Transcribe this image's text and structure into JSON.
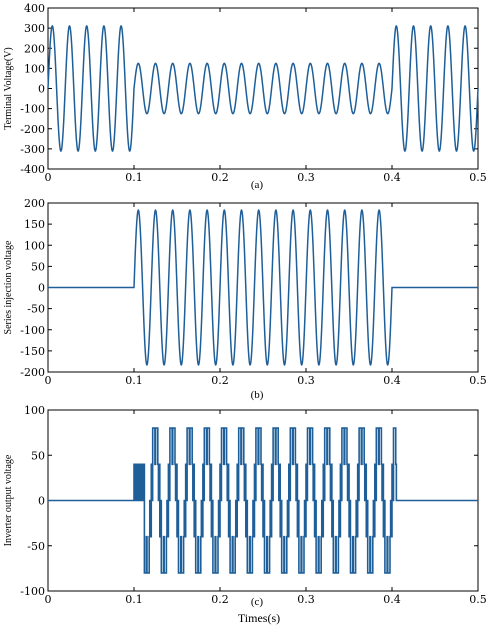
{
  "chart_data": [
    {
      "id": "a",
      "type": "line",
      "caption": "(a)",
      "ylabel": "Terminal Voltage(V)",
      "xlabel": "",
      "xlim": [
        0,
        0.5
      ],
      "ylim": [
        -400,
        400
      ],
      "xticks": [
        0,
        0.1,
        0.2,
        0.3,
        0.4,
        0.5
      ],
      "xtick_labels": [
        "0",
        "0.1",
        "0.2",
        "0.3",
        "0.4",
        "0.5"
      ],
      "yticks": [
        -400,
        -300,
        -200,
        -100,
        0,
        100,
        200,
        300,
        400
      ],
      "ytick_labels": [
        "-400",
        "-300",
        "-200",
        "-100",
        "0",
        "100",
        "200",
        "300",
        "400"
      ],
      "series": [
        {
          "color": "#1f5f99",
          "frequency_hz": 50,
          "segments": [
            {
              "t_start": 0,
              "t_end": 0.1,
              "amplitude": 311
            },
            {
              "t_start": 0.1,
              "t_end": 0.4,
              "amplitude": 125
            },
            {
              "t_start": 0.4,
              "t_end": 0.5,
              "amplitude": 311
            }
          ]
        }
      ]
    },
    {
      "id": "b",
      "type": "line",
      "caption": "(b)",
      "ylabel": "Series injection voltage",
      "xlabel": "",
      "xlim": [
        0,
        0.5
      ],
      "ylim": [
        -200,
        200
      ],
      "xticks": [
        0,
        0.1,
        0.2,
        0.3,
        0.4,
        0.5
      ],
      "xtick_labels": [
        "0",
        "0.1",
        "0.2",
        "0.3",
        "0.4",
        "0.5"
      ],
      "yticks": [
        -200,
        -150,
        -100,
        -50,
        0,
        50,
        100,
        150,
        200
      ],
      "ytick_labels": [
        "-200",
        "-150",
        "-100",
        "-50",
        "0",
        "50",
        "100",
        "150",
        "200"
      ],
      "series": [
        {
          "color": "#1f5f99",
          "frequency_hz": 50,
          "segments": [
            {
              "t_start": 0,
              "t_end": 0.1,
              "amplitude": 0
            },
            {
              "t_start": 0.1,
              "t_end": 0.4,
              "amplitude": 183
            },
            {
              "t_start": 0.4,
              "t_end": 0.5,
              "amplitude": 0
            }
          ]
        }
      ]
    },
    {
      "id": "c",
      "type": "line",
      "caption": "(c)",
      "ylabel": "Inverter output voltage",
      "xlabel": "Times(s)",
      "xlim": [
        0,
        0.5
      ],
      "ylim": [
        -100,
        100
      ],
      "xticks": [
        0,
        0.1,
        0.2,
        0.3,
        0.4,
        0.5
      ],
      "xtick_labels": [
        "0",
        "0.1",
        "0.2",
        "0.3",
        "0.4",
        "0.5"
      ],
      "yticks": [
        -100,
        -50,
        0,
        50,
        100
      ],
      "ytick_labels": [
        "-100",
        "-50",
        "0",
        "50",
        "100"
      ],
      "series": [
        {
          "color": "#1f5f99",
          "frequency_hz": 50,
          "pwm_active": [
            0.1,
            0.405
          ],
          "levels": [
            -80,
            -40,
            0,
            40,
            80
          ],
          "initial_block": {
            "t_start": 0.1,
            "t_end": 0.112,
            "level": 40
          }
        }
      ]
    }
  ]
}
